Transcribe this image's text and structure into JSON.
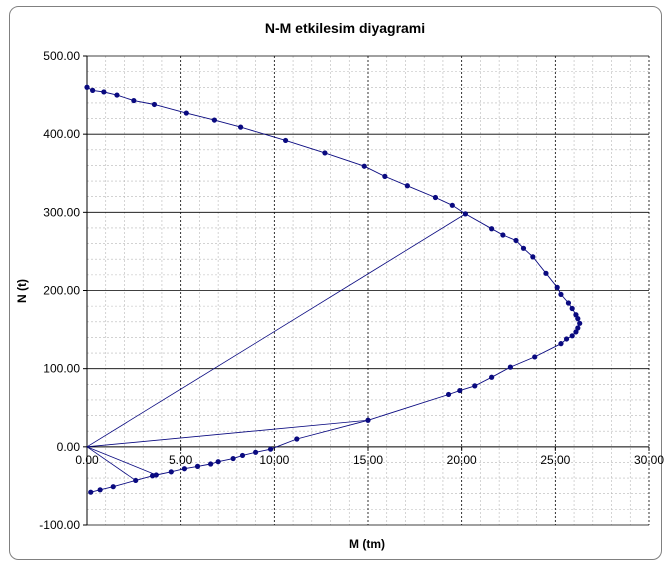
{
  "chart_data": {
    "type": "scatter",
    "title": "N-M etkilesim diyagrami",
    "xlabel": "M (tm)",
    "ylabel": "N (t)",
    "xlim": [
      0,
      30
    ],
    "ylim": [
      -100,
      500
    ],
    "x_ticks": [
      "0.00",
      "5.00",
      "10.00",
      "15.00",
      "20.00",
      "25.00",
      "30.00"
    ],
    "y_ticks": [
      "-100.00",
      "0.00",
      "100.00",
      "200.00",
      "300.00",
      "400.00",
      "500.00"
    ],
    "grid": true,
    "legend": "none",
    "colors": {
      "series": "#0a0a80",
      "marker": "#0a0a80",
      "major_grid": "#000000",
      "minor_grid": "#b8b8b8",
      "frame": "#808080"
    },
    "series": [
      {
        "x": [
          0.0,
          0.3,
          0.9,
          1.6,
          2.5,
          3.6,
          5.3,
          6.8,
          8.2,
          10.6,
          12.7,
          14.8,
          15.9,
          17.1,
          18.6,
          19.5,
          20.2,
          21.6,
          22.2,
          22.9,
          23.3,
          23.8,
          24.5,
          25.1,
          25.3,
          25.7,
          25.9,
          26.1,
          26.2,
          26.3,
          26.2,
          26.1,
          25.9,
          25.6,
          25.3,
          23.9,
          22.6,
          21.6,
          20.7,
          19.9,
          19.3,
          15.0,
          11.2,
          9.8,
          9.0,
          8.3,
          7.8,
          7.0,
          6.6,
          5.9,
          5.2,
          4.5,
          3.7,
          3.5,
          2.6,
          1.4,
          0.7,
          0.2
        ],
        "y": [
          460,
          456,
          454,
          450,
          443,
          438,
          427,
          418,
          409,
          392,
          376,
          359,
          346,
          334,
          319,
          309,
          298,
          279,
          271,
          264,
          254,
          243,
          222,
          204,
          195,
          184,
          177,
          169,
          164,
          158,
          152,
          147,
          142,
          138,
          132,
          115,
          102,
          89,
          78,
          72,
          67,
          34,
          10,
          -3,
          -7,
          -11,
          -15,
          -19,
          -22,
          -25,
          -28,
          -32,
          -36,
          -37,
          -43,
          -51,
          -55,
          -58
        ]
      }
    ],
    "annotation_lines": [
      {
        "x": [
          0.0,
          20.2
        ],
        "y": [
          0,
          298
        ]
      },
      {
        "x": [
          0.0,
          15.0
        ],
        "y": [
          0,
          34
        ]
      },
      {
        "x": [
          0.0,
          3.7
        ],
        "y": [
          0,
          -36
        ]
      },
      {
        "x": [
          0.0,
          2.6
        ],
        "y": [
          0,
          -43
        ]
      }
    ]
  }
}
